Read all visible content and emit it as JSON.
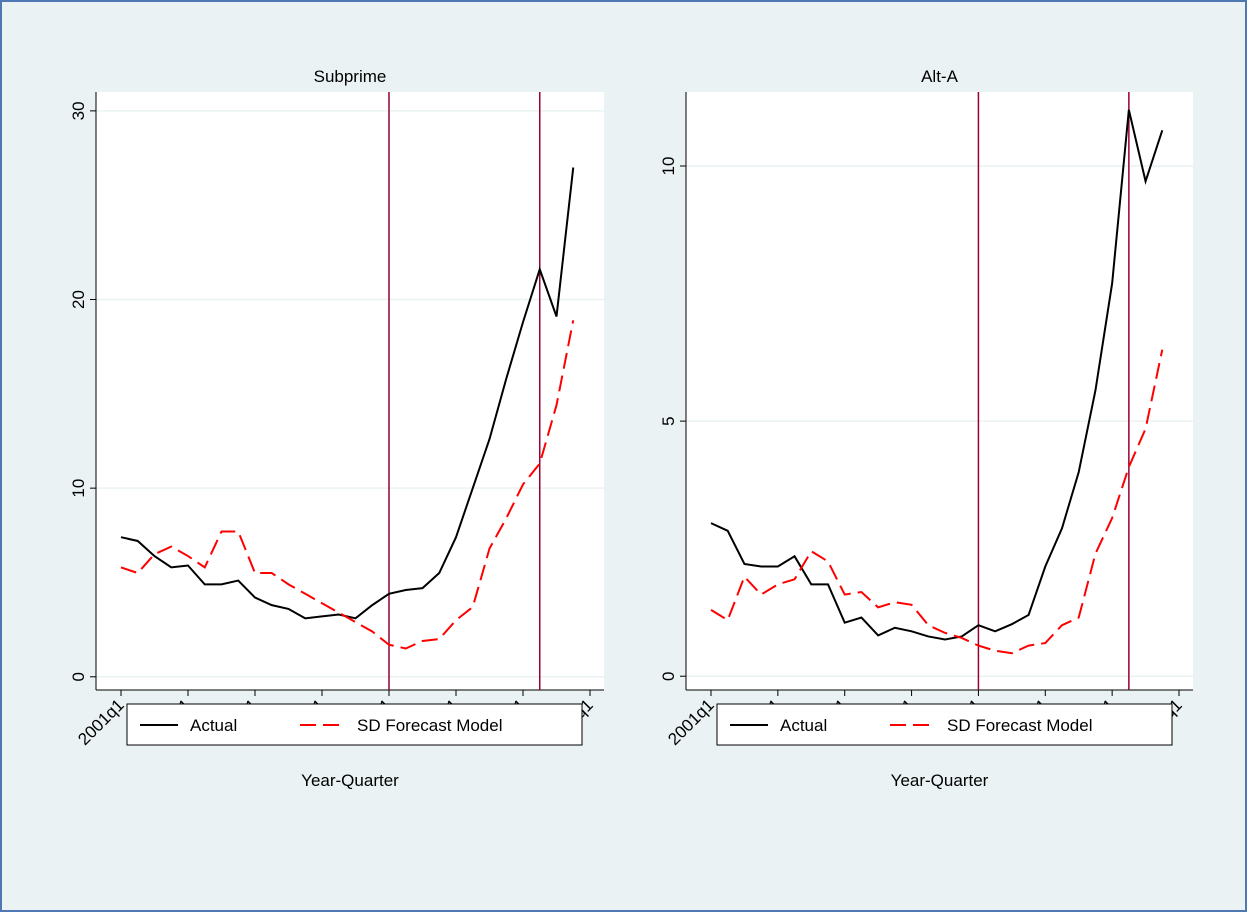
{
  "chart_data": [
    {
      "type": "line",
      "title": "Subprime",
      "xlabel": "Year-Quarter",
      "x": [
        "2001q1",
        "2001q2",
        "2001q3",
        "2001q4",
        "2002q1",
        "2002q2",
        "2002q3",
        "2002q4",
        "2003q1",
        "2003q2",
        "2003q3",
        "2003q4",
        "2004q1",
        "2004q2",
        "2004q3",
        "2004q4",
        "2005q1",
        "2005q2",
        "2005q3",
        "2005q4",
        "2006q1",
        "2006q2",
        "2006q3",
        "2006q4",
        "2007q1",
        "2007q2",
        "2007q3",
        "2007q4"
      ],
      "series": [
        {
          "name": "Actual",
          "color": "#000000",
          "dash": false,
          "values": [
            7.4,
            7.2,
            6.4,
            5.8,
            5.9,
            4.9,
            4.9,
            5.1,
            4.2,
            3.8,
            3.6,
            3.1,
            3.2,
            3.3,
            3.1,
            3.8,
            4.4,
            4.6,
            4.7,
            5.5,
            7.4,
            10.0,
            12.6,
            15.8,
            18.8,
            21.6,
            19.1,
            27.0
          ]
        },
        {
          "name": "SD Forecast Model",
          "color": "#ff0000",
          "dash": true,
          "values": [
            5.8,
            5.5,
            6.5,
            6.9,
            6.4,
            5.8,
            7.7,
            7.7,
            5.5,
            5.5,
            4.9,
            4.4,
            3.9,
            3.4,
            2.9,
            2.4,
            1.7,
            1.5,
            1.9,
            2.0,
            3.0,
            3.7,
            6.8,
            8.4,
            10.2,
            11.3,
            14.4,
            18.9
          ]
        }
      ],
      "xticks": [
        "2001q1",
        "2002q1",
        "2003q1",
        "2004q1",
        "2005q1",
        "2006q1",
        "2007q1",
        "2008q1"
      ],
      "ylim": [
        -0.7,
        31
      ],
      "yticks": [
        0,
        10,
        20,
        30
      ],
      "grid": true,
      "vlines": [
        "2005q1",
        "2007q2"
      ],
      "vline_color": "#990033"
    },
    {
      "type": "line",
      "title": "Alt-A",
      "xlabel": "Year-Quarter",
      "x": [
        "2001q1",
        "2001q2",
        "2001q3",
        "2001q4",
        "2002q1",
        "2002q2",
        "2002q3",
        "2002q4",
        "2003q1",
        "2003q2",
        "2003q3",
        "2003q4",
        "2004q1",
        "2004q2",
        "2004q3",
        "2004q4",
        "2005q1",
        "2005q2",
        "2005q3",
        "2005q4",
        "2006q1",
        "2006q2",
        "2006q3",
        "2006q4",
        "2007q1",
        "2007q2",
        "2007q3",
        "2007q4"
      ],
      "series": [
        {
          "name": "Actual",
          "color": "#000000",
          "dash": false,
          "values": [
            3.0,
            2.85,
            2.2,
            2.15,
            2.15,
            2.35,
            1.8,
            1.8,
            1.05,
            1.15,
            0.8,
            0.95,
            0.88,
            0.78,
            0.72,
            0.78,
            1.0,
            0.88,
            1.02,
            1.2,
            2.15,
            2.9,
            4.0,
            5.6,
            7.7,
            11.1,
            9.7,
            10.7
          ]
        },
        {
          "name": "SD Forecast Model",
          "color": "#ff0000",
          "dash": true,
          "values": [
            1.3,
            1.1,
            1.95,
            1.6,
            1.8,
            1.9,
            2.45,
            2.25,
            1.6,
            1.65,
            1.35,
            1.45,
            1.4,
            1.0,
            0.85,
            0.75,
            0.6,
            0.5,
            0.45,
            0.6,
            0.65,
            1.0,
            1.15,
            2.4,
            3.1,
            4.1,
            4.85,
            6.4
          ]
        }
      ],
      "xticks": [
        "2001q1",
        "2002q1",
        "2003q1",
        "2004q1",
        "2005q1",
        "2006q1",
        "2007q1",
        "2008q1"
      ],
      "ylim": [
        -0.27,
        11.45
      ],
      "yticks": [
        0,
        5,
        10
      ],
      "grid": true,
      "vlines": [
        "2005q1",
        "2007q2"
      ],
      "vline_color": "#990033"
    }
  ]
}
